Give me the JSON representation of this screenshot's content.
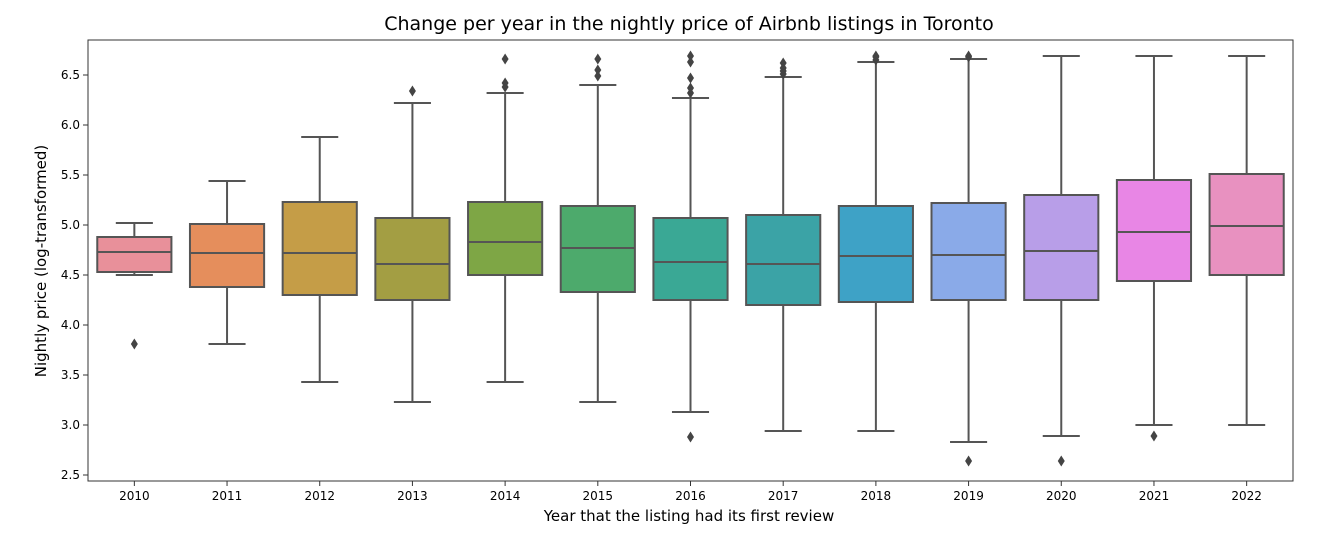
{
  "chart_data": {
    "type": "box",
    "title": "Change per year in the nightly price of Airbnb listings in Toronto",
    "xlabel": "Year that the listing had its first review",
    "ylabel": "Nightly price (log-transformed)",
    "ylim": [
      2.44,
      6.85
    ],
    "yticks": [
      "2.5",
      "3.0",
      "3.5",
      "4.0",
      "4.5",
      "5.0",
      "5.5",
      "6.0",
      "6.5"
    ],
    "grid": false,
    "categories": [
      "2010",
      "2011",
      "2012",
      "2013",
      "2014",
      "2015",
      "2016",
      "2017",
      "2018",
      "2019",
      "2020",
      "2021",
      "2022"
    ],
    "boxes": [
      {
        "category": "2010",
        "whisker_low": 4.5,
        "q1": 4.53,
        "median": 4.73,
        "q3": 4.88,
        "whisker_high": 5.02,
        "outliers": [
          3.81
        ],
        "color": "#e8909a"
      },
      {
        "category": "2011",
        "whisker_low": 3.81,
        "q1": 4.38,
        "median": 4.72,
        "q3": 5.01,
        "whisker_high": 5.44,
        "outliers": [],
        "color": "#e58e5c"
      },
      {
        "category": "2012",
        "whisker_low": 3.43,
        "q1": 4.3,
        "median": 4.72,
        "q3": 5.23,
        "whisker_high": 5.88,
        "outliers": [],
        "color": "#c59d47"
      },
      {
        "category": "2013",
        "whisker_low": 3.23,
        "q1": 4.25,
        "median": 4.61,
        "q3": 5.07,
        "whisker_high": 6.22,
        "outliers": [
          6.34
        ],
        "color": "#a39e43"
      },
      {
        "category": "2014",
        "whisker_low": 3.43,
        "q1": 4.5,
        "median": 4.83,
        "q3": 5.23,
        "whisker_high": 6.32,
        "outliers": [
          6.38,
          6.42,
          6.66
        ],
        "color": "#7ea645"
      },
      {
        "category": "2015",
        "whisker_low": 3.23,
        "q1": 4.33,
        "median": 4.77,
        "q3": 5.19,
        "whisker_high": 6.4,
        "outliers": [
          6.49,
          6.55,
          6.66
        ],
        "color": "#4daa6c"
      },
      {
        "category": "2016",
        "whisker_low": 3.13,
        "q1": 4.25,
        "median": 4.63,
        "q3": 5.07,
        "whisker_high": 6.27,
        "outliers": [
          2.88,
          6.32,
          6.37,
          6.47,
          6.63,
          6.69
        ],
        "color": "#3aa895"
      },
      {
        "category": "2017",
        "whisker_low": 2.94,
        "q1": 4.2,
        "median": 4.61,
        "q3": 5.1,
        "whisker_high": 6.48,
        "outliers": [
          6.51,
          6.54,
          6.57,
          6.62
        ],
        "color": "#3ba3a6"
      },
      {
        "category": "2018",
        "whisker_low": 2.94,
        "q1": 4.23,
        "median": 4.69,
        "q3": 5.19,
        "whisker_high": 6.63,
        "outliers": [
          6.65,
          6.68,
          6.69
        ],
        "color": "#3ea2c6"
      },
      {
        "category": "2019",
        "whisker_low": 2.83,
        "q1": 4.25,
        "median": 4.7,
        "q3": 5.22,
        "whisker_high": 6.66,
        "outliers": [
          2.64,
          6.68,
          6.69
        ],
        "color": "#8aaae8"
      },
      {
        "category": "2020",
        "whisker_low": 2.89,
        "q1": 4.25,
        "median": 4.74,
        "q3": 5.3,
        "whisker_high": 6.69,
        "outliers": [
          2.64
        ],
        "color": "#b89ee8"
      },
      {
        "category": "2021",
        "whisker_low": 3.0,
        "q1": 4.44,
        "median": 4.93,
        "q3": 5.45,
        "whisker_high": 6.69,
        "outliers": [
          2.89
        ],
        "color": "#e886e5"
      },
      {
        "category": "2022",
        "whisker_low": 3.0,
        "q1": 4.5,
        "median": 4.99,
        "q3": 5.51,
        "whisker_high": 6.69,
        "outliers": [],
        "color": "#e891c0"
      }
    ]
  }
}
